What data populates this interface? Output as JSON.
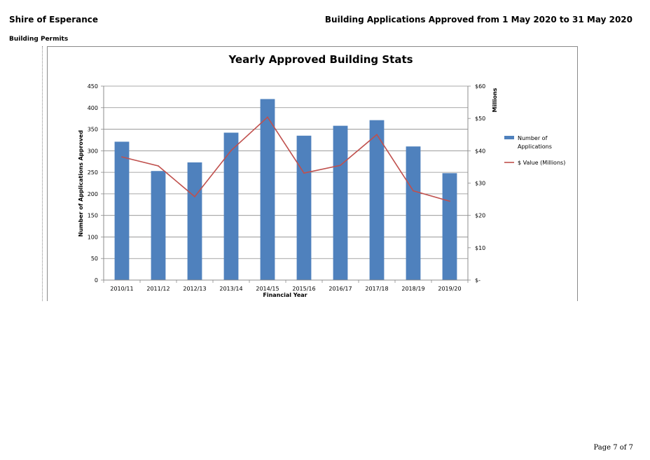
{
  "header": {
    "org": "Shire of Esperance",
    "report_title": "Building Applications Approved from 1 May 2020 to 31 May 2020",
    "section": "Building Permits"
  },
  "footer": {
    "page": "Page 7 of 7"
  },
  "chart_data": {
    "type": "bar",
    "title": "Yearly Approved Building Stats",
    "xlabel": "Financial Year",
    "ylabel": "Number of Applications Approved",
    "y2label": "Millions",
    "categories": [
      "2010/11",
      "2011/12",
      "2012/13",
      "2013/14",
      "2014/15",
      "2015/16",
      "2016/17",
      "2017/18",
      "2018/19",
      "2019/20"
    ],
    "series": [
      {
        "name": "Number of Applications",
        "type": "bar",
        "axis": "left",
        "color": "#4f81bd",
        "values": [
          321,
          253,
          273,
          342,
          420,
          335,
          358,
          371,
          310,
          248
        ]
      },
      {
        "name": "$ Value (Millions)",
        "type": "line",
        "axis": "right",
        "color": "#c0504d",
        "values": [
          38.1,
          35.3,
          25.8,
          40.1,
          50.4,
          33.1,
          35.5,
          45.0,
          27.6,
          24.4
        ]
      }
    ],
    "ylim": [
      0,
      450
    ],
    "yticks": [
      0,
      50,
      100,
      150,
      200,
      250,
      300,
      350,
      400,
      450
    ],
    "y2lim": [
      0,
      60
    ],
    "y2ticks": [
      0,
      10,
      20,
      30,
      40,
      50,
      60
    ],
    "y2ticklabels": [
      "$-",
      "$10",
      "$20",
      "$30",
      "$40",
      "$50",
      "$60"
    ],
    "grid": true,
    "legend": "right"
  }
}
